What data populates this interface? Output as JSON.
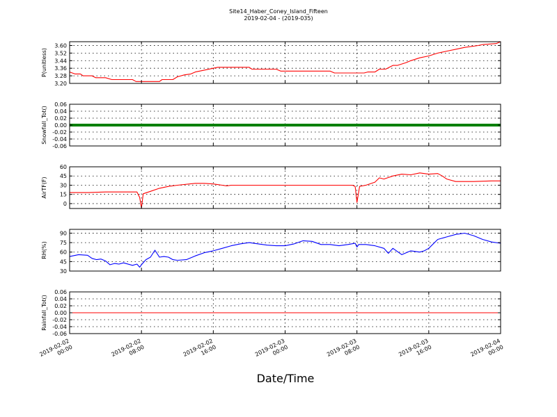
{
  "figure": {
    "title_line1": "Site14_Haber_Coney_Island_Fifteen",
    "title_line2": "2019-02-04 - (2019-035)",
    "xlabel": "Date/Time"
  },
  "colors": {
    "red": "#ff0000",
    "green": "#008000",
    "blue": "#0000ff"
  },
  "chart_data": [
    {
      "type": "line",
      "ylabel": "P(unitless)",
      "ylim": [
        3.2,
        3.64
      ],
      "yticks": [
        "3.20",
        "3.28",
        "3.36",
        "3.44",
        "3.52",
        "3.60"
      ],
      "ytick_values": [
        3.2,
        3.28,
        3.36,
        3.44,
        3.52,
        3.6
      ],
      "color": "#ff0000",
      "xlim": [
        0,
        48
      ],
      "x": [
        0,
        0.6,
        1.2,
        1.5,
        2.5,
        2.9,
        4.0,
        4.7,
        6.0,
        7.0,
        7.4,
        10.0,
        10.3,
        11.5,
        12.0,
        12.8,
        13.5,
        14.0,
        15.0,
        16.0,
        16.5,
        19.0,
        20.0,
        20.3,
        23.0,
        23.5,
        29.0,
        29.5,
        32.8,
        33.2,
        34.0,
        34.5,
        35.2,
        36.0,
        36.5,
        37.5,
        38.0,
        39.0,
        40.0,
        41.0,
        42.0,
        43.0,
        44.0,
        45.5,
        46.0,
        47.5,
        48.0
      ],
      "values": [
        3.32,
        3.3,
        3.3,
        3.28,
        3.28,
        3.26,
        3.26,
        3.24,
        3.24,
        3.24,
        3.22,
        3.22,
        3.24,
        3.24,
        3.27,
        3.29,
        3.3,
        3.32,
        3.34,
        3.36,
        3.37,
        3.37,
        3.37,
        3.35,
        3.35,
        3.33,
        3.33,
        3.31,
        3.31,
        3.32,
        3.32,
        3.35,
        3.35,
        3.39,
        3.39,
        3.42,
        3.44,
        3.47,
        3.49,
        3.52,
        3.54,
        3.56,
        3.58,
        3.6,
        3.61,
        3.62,
        3.64
      ]
    },
    {
      "type": "line",
      "ylabel": "Snowfall_Tot()",
      "ylim": [
        -0.06,
        0.06
      ],
      "yticks": [
        "-0.06",
        "-0.04",
        "-0.02",
        "0.00",
        "0.02",
        "0.04",
        "0.06"
      ],
      "ytick_values": [
        -0.06,
        -0.04,
        -0.02,
        0.0,
        0.02,
        0.04,
        0.06
      ],
      "color": "#008000",
      "xlim": [
        0,
        48
      ],
      "x": [
        0,
        48
      ],
      "values": [
        0,
        0
      ]
    },
    {
      "type": "line",
      "ylabel": "AirTF(F)",
      "ylim": [
        -8,
        60
      ],
      "yticks": [
        "0",
        "15",
        "30",
        "45",
        "60"
      ],
      "ytick_values": [
        0,
        15,
        30,
        45,
        60
      ],
      "color": "#ff0000",
      "xlim": [
        0,
        48
      ],
      "x": [
        0,
        2,
        4,
        6,
        7.5,
        7.8,
        8.0,
        8.2,
        9.0,
        10.0,
        11.0,
        12.0,
        14.0,
        15.0,
        16.0,
        17.0,
        17.5,
        18.0,
        20.0,
        24.0,
        28.0,
        31.5,
        31.8,
        32.0,
        32.3,
        33.0,
        34.0,
        34.5,
        35.0,
        36.0,
        37.0,
        38.0,
        39.0,
        40.0,
        41.0,
        41.5,
        42.0,
        43.0,
        45.0,
        47.0,
        48.0
      ],
      "values": [
        18,
        18,
        19,
        19,
        19,
        10,
        -7,
        16,
        20,
        25,
        28,
        30,
        33,
        33,
        32,
        30,
        29,
        30,
        30,
        30,
        30,
        30,
        28,
        2,
        28,
        30,
        35,
        42,
        40,
        45,
        48,
        47,
        50,
        48,
        49,
        45,
        40,
        36,
        36,
        37,
        37
      ]
    },
    {
      "type": "line",
      "ylabel": "RH(%)",
      "ylim": [
        30,
        96
      ],
      "yticks": [
        "30",
        "45",
        "60",
        "75",
        "90"
      ],
      "ytick_values": [
        30,
        45,
        60,
        75,
        90
      ],
      "color": "#0000ff",
      "xlim": [
        0,
        48
      ],
      "x": [
        0,
        1.0,
        2.0,
        2.5,
        3.0,
        3.5,
        4.0,
        4.5,
        5.0,
        5.5,
        6.0,
        7.0,
        7.5,
        7.8,
        8.0,
        8.5,
        9.0,
        9.5,
        10.0,
        10.5,
        11.0,
        11.5,
        12.0,
        13.0,
        14.0,
        15.0,
        16.0,
        17.0,
        18.0,
        19.0,
        20.0,
        21.0,
        22.0,
        23.0,
        24.0,
        25.0,
        26.0,
        27.0,
        28.0,
        29.0,
        30.0,
        31.0,
        31.8,
        32.0,
        32.2,
        33.0,
        34.0,
        35.0,
        35.5,
        36.0,
        37.0,
        38.0,
        39.0,
        39.5,
        40.0,
        41.0,
        42.0,
        43.0,
        44.0,
        45.0,
        46.0,
        47.0,
        48.0
      ],
      "values": [
        53,
        56,
        55,
        50,
        48,
        49,
        46,
        40,
        42,
        41,
        43,
        39,
        41,
        36,
        40,
        48,
        52,
        63,
        52,
        53,
        52,
        48,
        47,
        48,
        54,
        59,
        62,
        66,
        70,
        73,
        75,
        73,
        71,
        70,
        70,
        73,
        78,
        77,
        72,
        72,
        70,
        72,
        74,
        68,
        72,
        72,
        70,
        66,
        58,
        66,
        56,
        62,
        60,
        62,
        66,
        80,
        84,
        88,
        90,
        86,
        80,
        76,
        74
      ]
    },
    {
      "type": "line",
      "ylabel": "Rainfall_Tot()",
      "ylim": [
        -0.06,
        0.06
      ],
      "yticks": [
        "-0.06",
        "-0.04",
        "-0.02",
        "0.00",
        "0.02",
        "0.04",
        "0.06"
      ],
      "ytick_values": [
        -0.06,
        -0.04,
        -0.02,
        0.0,
        0.02,
        0.04,
        0.06
      ],
      "color": "#ff0000",
      "xlim": [
        0,
        48
      ],
      "x": [
        0,
        48
      ],
      "values": [
        0,
        0
      ]
    }
  ],
  "xticks": [
    {
      "value": 0,
      "line1": "2019-02-02",
      "line2": "00:00"
    },
    {
      "value": 8,
      "line1": "2019-02-02",
      "line2": "08:00"
    },
    {
      "value": 16,
      "line1": "2019-02-02",
      "line2": "16:00"
    },
    {
      "value": 24,
      "line1": "2019-02-03",
      "line2": "00:00"
    },
    {
      "value": 32,
      "line1": "2019-02-03",
      "line2": "08:00"
    },
    {
      "value": 40,
      "line1": "2019-02-03",
      "line2": "16:00"
    },
    {
      "value": 48,
      "line1": "2019-02-04",
      "line2": "00:00"
    }
  ]
}
